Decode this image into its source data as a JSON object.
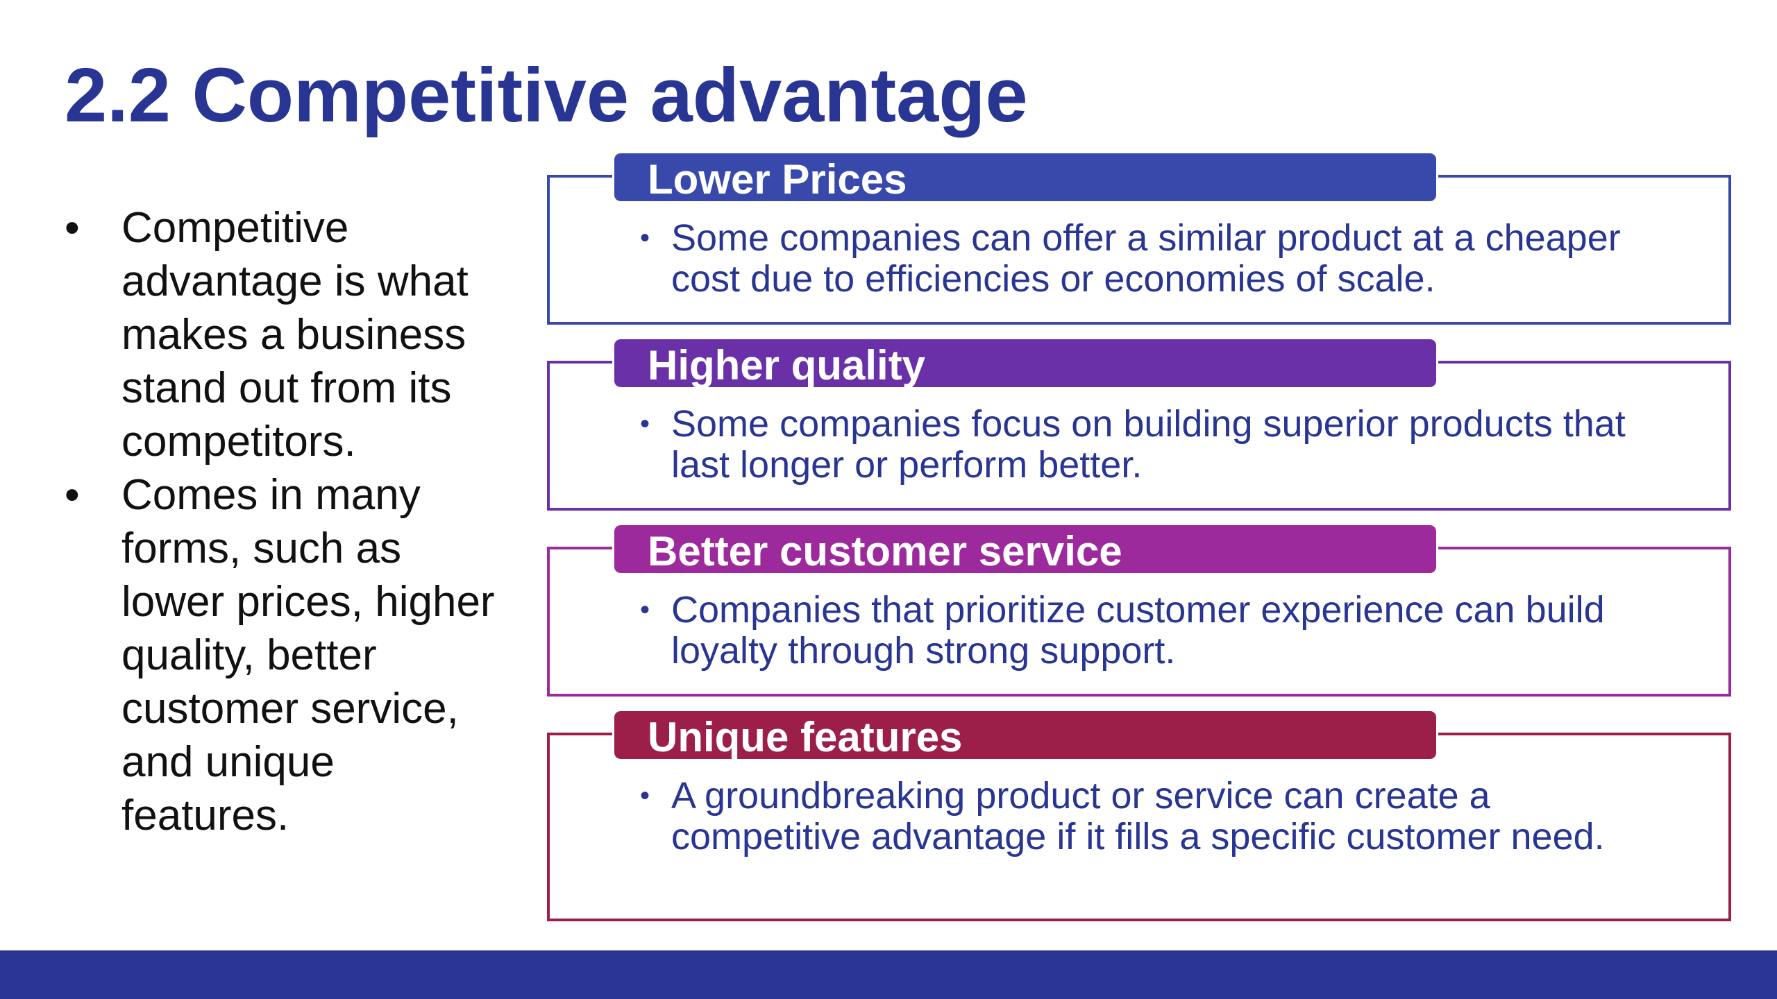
{
  "slide": {
    "title": "2.2 Competitive advantage",
    "left_bullets": [
      "Competitive advantage is what makes a business stand out from its competitors.",
      "Comes in many forms, such as lower prices, higher quality, better customer service, and unique features."
    ],
    "boxes": [
      {
        "header": "Lower Prices",
        "body": "Some companies can offer a similar product at a cheaper cost due to efficiencies or economies of scale.",
        "color": "#3949ab"
      },
      {
        "header": "Higher quality",
        "body": " Some companies focus on building superior products that last longer or perform better.",
        "color": "#6a30a8"
      },
      {
        "header": "Better customer service",
        "body": "Companies that prioritize customer experience can build loyalty through strong support.",
        "color": "#9c2a9c"
      },
      {
        "header": "Unique features",
        "body": "A groundbreaking product or service can create a competitive advantage if it fills a specific customer need.",
        "color": "#9c1f4a"
      }
    ],
    "bullet_glyph": "•",
    "footer_color": "#283593"
  }
}
